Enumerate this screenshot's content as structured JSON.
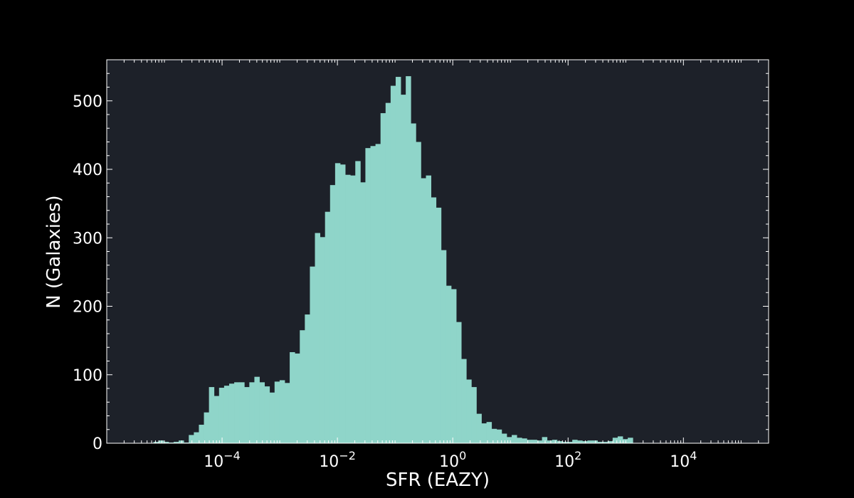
{
  "chart_data": {
    "type": "bar",
    "title": "",
    "xlabel": "SFR (EAZY)",
    "ylabel": "N (Galaxies)",
    "xscale": "log",
    "xlim": [
      1e-06,
      300000
    ],
    "ylim": [
      0,
      560
    ],
    "grid": false,
    "colors": {
      "bar": "#8fd5c9",
      "plot_bg": "#1d2129",
      "figure_bg": "#000000",
      "axes": "#ffffff"
    },
    "yticks": [
      0,
      100,
      200,
      300,
      400,
      500
    ],
    "ytick_labels": [
      "0",
      "100",
      "200",
      "300",
      "400",
      "500"
    ],
    "xticks": [
      0.0001,
      0.01,
      1,
      100,
      10000
    ],
    "xtick_labels": [
      {
        "base": "10",
        "exp": "−4"
      },
      {
        "base": "10",
        "exp": "−2"
      },
      {
        "base": "10",
        "exp": "0"
      },
      {
        "base": "10",
        "exp": "2"
      },
      {
        "base": "10",
        "exp": "4"
      }
    ],
    "log10_bin_edges_start": -5.19,
    "log10_bin_width": 0.0875,
    "counts": [
      2,
      4,
      2,
      1,
      2,
      4,
      1,
      12,
      16,
      27,
      45,
      82,
      69,
      81,
      84,
      87,
      89,
      89,
      82,
      89,
      97,
      89,
      83,
      74,
      90,
      92,
      88,
      133,
      131,
      165,
      188,
      258,
      307,
      301,
      338,
      377,
      409,
      407,
      392,
      391,
      412,
      381,
      431,
      434,
      437,
      482,
      497,
      522,
      535,
      509,
      536,
      467,
      440,
      387,
      391,
      359,
      344,
      282,
      230,
      225,
      177,
      123,
      93,
      82,
      43,
      29,
      31,
      21,
      20,
      14,
      9,
      12,
      8,
      7,
      5,
      5,
      4,
      9,
      4,
      5,
      3,
      2,
      2,
      5,
      4,
      3,
      4,
      4,
      2,
      2,
      3,
      8,
      10,
      6,
      8
    ]
  }
}
